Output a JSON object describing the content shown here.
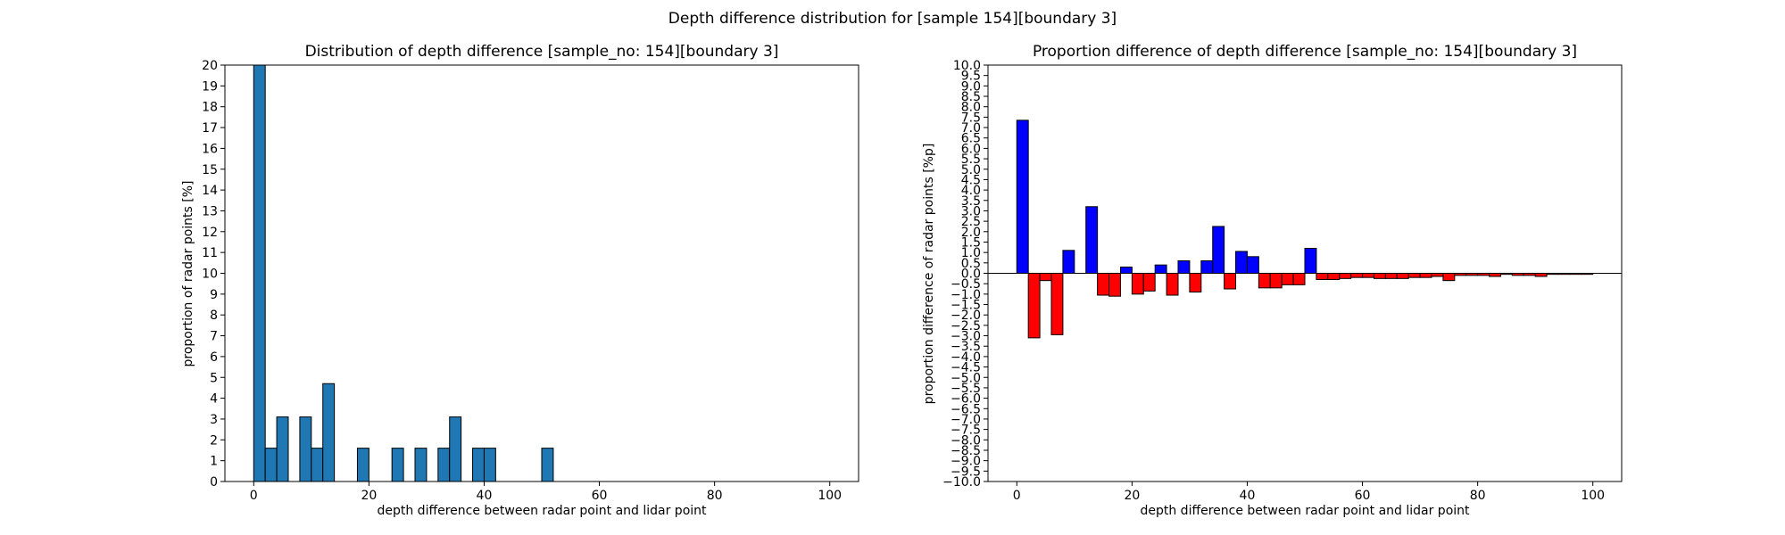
{
  "figure": {
    "suptitle": "Depth difference distribution for [sample 154][boundary 3]"
  },
  "colors": {
    "hist": "#1f77b4",
    "positive": "#0000ff",
    "negative": "#ff0000",
    "edge": "#000000"
  },
  "chart_data": [
    {
      "type": "bar",
      "title": "Distribution of depth difference [sample_no: 154][boundary 3]",
      "xlabel": "depth difference between radar point and lidar point",
      "ylabel": "proportion of radar points [%]",
      "xlim": [
        -5,
        105
      ],
      "ylim": [
        0,
        20
      ],
      "xticks": [
        0,
        20,
        40,
        60,
        80,
        100
      ],
      "yticks": [
        0,
        1,
        2,
        3,
        4,
        5,
        6,
        7,
        8,
        9,
        10,
        11,
        12,
        13,
        14,
        15,
        16,
        17,
        18,
        19,
        20
      ],
      "bin_width": 2,
      "bins": [
        {
          "x": 0,
          "value": 20
        },
        {
          "x": 2,
          "value": 1.6
        },
        {
          "x": 4,
          "value": 3.1
        },
        {
          "x": 8,
          "value": 3.1
        },
        {
          "x": 10,
          "value": 1.6
        },
        {
          "x": 12,
          "value": 4.7
        },
        {
          "x": 18,
          "value": 1.6
        },
        {
          "x": 24,
          "value": 1.6
        },
        {
          "x": 28,
          "value": 1.6
        },
        {
          "x": 32,
          "value": 1.6
        },
        {
          "x": 34,
          "value": 3.1
        },
        {
          "x": 38,
          "value": 1.6
        },
        {
          "x": 40,
          "value": 1.6
        },
        {
          "x": 50,
          "value": 1.6
        }
      ]
    },
    {
      "type": "bar",
      "title": "Proportion difference of depth difference [sample_no: 154][boundary 3]",
      "xlabel": "depth difference between radar point and lidar point",
      "ylabel": "proportion difference of radar points [%p]",
      "xlim": [
        -5,
        105
      ],
      "ylim": [
        -10,
        10
      ],
      "xticks": [
        0,
        20,
        40,
        60,
        80,
        100
      ],
      "yticks": [
        -10.0,
        -9.5,
        -9.0,
        -8.5,
        -8.0,
        -7.5,
        -7.0,
        -6.5,
        -6.0,
        -5.5,
        -5.0,
        -4.5,
        -4.0,
        -3.5,
        -3.0,
        -2.5,
        -2.0,
        -1.5,
        -1.0,
        -0.5,
        0.0,
        0.5,
        1.0,
        1.5,
        2.0,
        2.5,
        3.0,
        3.5,
        4.0,
        4.5,
        5.0,
        5.5,
        6.0,
        6.5,
        7.0,
        7.5,
        8.0,
        8.5,
        9.0,
        9.5,
        10.0
      ],
      "bin_width": 2,
      "bins": [
        {
          "x": 0,
          "value": 7.35
        },
        {
          "x": 2,
          "value": -3.1
        },
        {
          "x": 4,
          "value": -0.35
        },
        {
          "x": 6,
          "value": -2.95
        },
        {
          "x": 8,
          "value": 1.1
        },
        {
          "x": 10,
          "value": 0
        },
        {
          "x": 12,
          "value": 3.2
        },
        {
          "x": 14,
          "value": -1.05
        },
        {
          "x": 16,
          "value": -1.1
        },
        {
          "x": 18,
          "value": 0.3
        },
        {
          "x": 20,
          "value": -1.0
        },
        {
          "x": 22,
          "value": -0.85
        },
        {
          "x": 24,
          "value": 0.4
        },
        {
          "x": 26,
          "value": -1.05
        },
        {
          "x": 28,
          "value": 0.6
        },
        {
          "x": 30,
          "value": -0.9
        },
        {
          "x": 32,
          "value": 0.6
        },
        {
          "x": 34,
          "value": 2.25
        },
        {
          "x": 36,
          "value": -0.75
        },
        {
          "x": 38,
          "value": 1.05
        },
        {
          "x": 40,
          "value": 0.8
        },
        {
          "x": 42,
          "value": -0.7
        },
        {
          "x": 44,
          "value": -0.7
        },
        {
          "x": 46,
          "value": -0.55
        },
        {
          "x": 48,
          "value": -0.55
        },
        {
          "x": 50,
          "value": 1.2
        },
        {
          "x": 52,
          "value": -0.3
        },
        {
          "x": 54,
          "value": -0.3
        },
        {
          "x": 56,
          "value": -0.25
        },
        {
          "x": 58,
          "value": -0.2
        },
        {
          "x": 60,
          "value": -0.2
        },
        {
          "x": 62,
          "value": -0.25
        },
        {
          "x": 64,
          "value": -0.25
        },
        {
          "x": 66,
          "value": -0.25
        },
        {
          "x": 68,
          "value": -0.2
        },
        {
          "x": 70,
          "value": -0.2
        },
        {
          "x": 72,
          "value": -0.15
        },
        {
          "x": 74,
          "value": -0.35
        },
        {
          "x": 76,
          "value": -0.1
        },
        {
          "x": 78,
          "value": -0.1
        },
        {
          "x": 80,
          "value": -0.1
        },
        {
          "x": 82,
          "value": -0.15
        },
        {
          "x": 84,
          "value": -0.05
        },
        {
          "x": 86,
          "value": -0.1
        },
        {
          "x": 88,
          "value": -0.1
        },
        {
          "x": 90,
          "value": -0.15
        },
        {
          "x": 92,
          "value": -0.05
        },
        {
          "x": 94,
          "value": -0.05
        },
        {
          "x": 96,
          "value": -0.05
        },
        {
          "x": 98,
          "value": -0.05
        }
      ]
    }
  ]
}
